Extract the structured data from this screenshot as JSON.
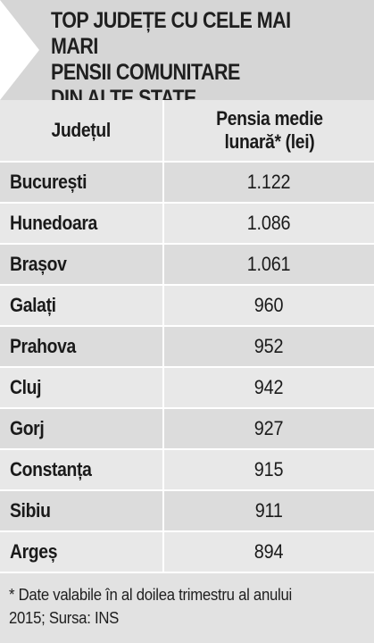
{
  "title": "TOP JUDEȚE CU CELE MAI MARI\nPENSII COMUNITARE\nDIN ALTE STATE",
  "colors": {
    "title_band": "#d6d6d6",
    "arrow": "#ffffff",
    "row_dark": "#dcdcdc",
    "row_light": "#e8e8e8",
    "header_bg": "#e7e7e7"
  },
  "table": {
    "headers": {
      "county": "Județul",
      "pension_line1": "Pensia medie",
      "pension_line2": "lunară* (lei)"
    },
    "rows": [
      {
        "county": "București",
        "pension": "1.122"
      },
      {
        "county": "Hunedoara",
        "pension": "1.086"
      },
      {
        "county": "Brașov",
        "pension": "1.061"
      },
      {
        "county": "Galați",
        "pension": "960"
      },
      {
        "county": "Prahova",
        "pension": "952"
      },
      {
        "county": "Cluj",
        "pension": "942"
      },
      {
        "county": "Gorj",
        "pension": "927"
      },
      {
        "county": "Constanța",
        "pension": "915"
      },
      {
        "county": "Sibiu",
        "pension": "911"
      },
      {
        "county": "Argeș",
        "pension": "894"
      }
    ]
  },
  "footnote": {
    "line1": "* Date valabile în al doilea trimestru al anului",
    "line2": "2015; Sursa: INS"
  }
}
